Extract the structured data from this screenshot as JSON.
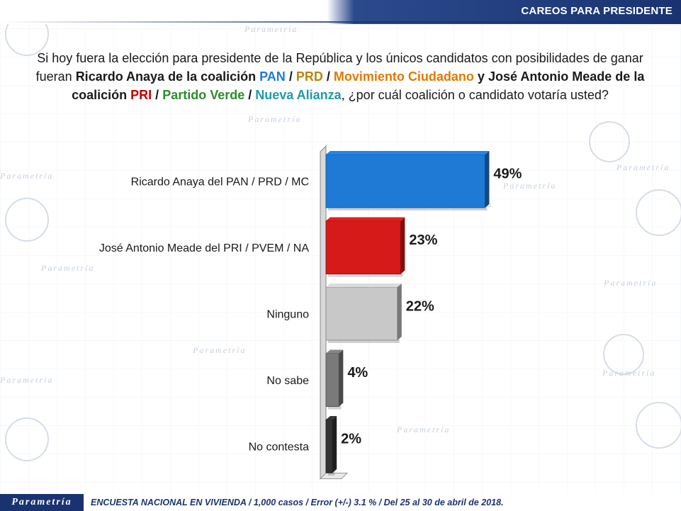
{
  "header": {
    "title": "CAREOS PARA PRESIDENTE"
  },
  "question": {
    "part1": "Si hoy fuera la elección para presidente de la República y los únicos candidatos con posibilidades de ganar fueran ",
    "candidate1": "Ricardo Anaya de la coalición",
    "pan": "PAN",
    "prd": "PRD",
    "mc": "Movimiento Ciudadano",
    "and": "y",
    "candidate2": "José Antonio Meade de la coalición",
    "pri": "PRI",
    "pv": "Partido Verde",
    "na": "Nueva Alianza",
    "part2": ", ¿por cuál coalición o candidato votaría usted?",
    "slash": "/"
  },
  "watermark": {
    "brand": "Parametría"
  },
  "chart_data": {
    "type": "bar",
    "orientation": "horizontal",
    "categories": [
      "Ricardo Anaya del PAN / PRD / MC",
      "José Antonio Meade del PRI / PVEM / NA",
      "Ninguno",
      "No sabe",
      "No contesta"
    ],
    "values": [
      49,
      23,
      22,
      4,
      2
    ],
    "value_labels": [
      "49%",
      "23%",
      "22%",
      "4%",
      "2%"
    ],
    "colors": [
      "#1f7ad6",
      "#d61a1a",
      "#c8c8c8",
      "#7a7a7a",
      "#333333"
    ],
    "xlim": [
      0,
      100
    ],
    "grid": false,
    "legend": "none"
  },
  "footer": {
    "logo": "Parametría",
    "note": "ENCUESTA NACIONAL EN VIVIENDA / 1,000 casos / Error (+/-) 3.1 % / Del 25 al 30 de abril de 2018."
  }
}
